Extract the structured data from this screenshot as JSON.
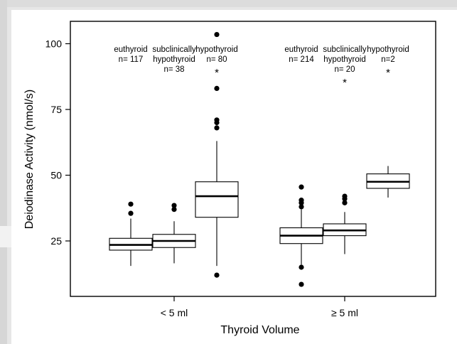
{
  "chart_data": {
    "type": "box",
    "xlabel": "Thyroid Volume",
    "ylabel": "Deiodinase Activity (nmol/s)",
    "ylim": [
      4,
      110
    ],
    "yticks": [
      25,
      50,
      75,
      100
    ],
    "groups": [
      {
        "label": "< 5 ml",
        "boxes": [
          {
            "status": "euthyroid",
            "n_label": "n= 117",
            "whisker_low": 15.5,
            "q1": 21.5,
            "median": 23.5,
            "q3": 26,
            "whisker_high": 33.5,
            "outliers": [
              35.5,
              39
            ],
            "significance": ""
          },
          {
            "status": "subclinically hypothyroid",
            "n_label": "n= 38",
            "whisker_low": 16.5,
            "q1": 22.5,
            "median": 25,
            "q3": 27.5,
            "whisker_high": 32.5,
            "outliers": [
              37,
              38.5
            ],
            "significance": ""
          },
          {
            "status": "hypothyroid",
            "n_label": "n= 80",
            "whisker_low": 15.5,
            "q1": 34,
            "median": 42,
            "q3": 47.5,
            "whisker_high": 63,
            "outliers": [
              12,
              68,
              70,
              71,
              83,
              103.5
            ],
            "significance": "*"
          }
        ]
      },
      {
        "label": "≥ 5 ml",
        "boxes": [
          {
            "status": "euthyroid",
            "n_label": "n= 214",
            "whisker_low": 16,
            "q1": 24,
            "median": 27,
            "q3": 30,
            "whisker_high": 37,
            "outliers": [
              8.5,
              15,
              38,
              39.5,
              40.5,
              45.5
            ],
            "significance": ""
          },
          {
            "status": "subclinically hypothyroid",
            "n_label": "n= 20",
            "whisker_low": 20,
            "q1": 27,
            "median": 29,
            "q3": 31.5,
            "whisker_high": 36,
            "outliers": [
              39.5,
              41,
              42
            ],
            "significance": "*"
          },
          {
            "status": "hypothyroid",
            "n_label": "n=2",
            "whisker_low": 41.5,
            "q1": 45,
            "median": 47.5,
            "q3": 50.5,
            "whisker_high": 53.5,
            "outliers": [],
            "significance": "*"
          }
        ]
      }
    ],
    "grid": false,
    "legend": "none"
  }
}
